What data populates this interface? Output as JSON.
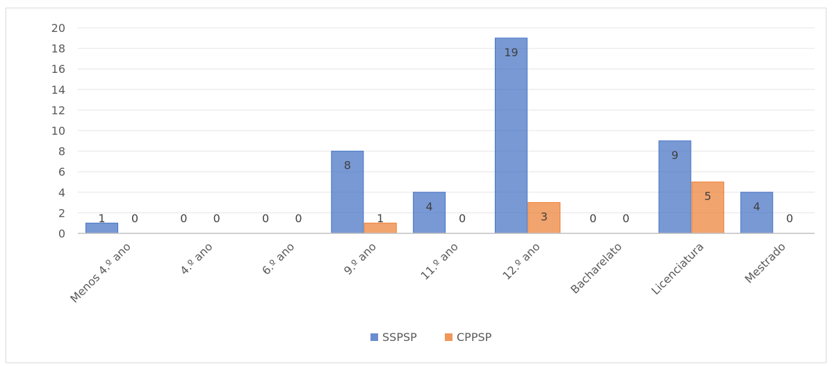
{
  "chart_data": {
    "type": "bar",
    "categories": [
      "Menos 4.º ano",
      "4.º ano",
      "6.º ano",
      "9.º ano",
      "11.º ano",
      "12.º ano",
      "Bacharelato",
      "Licenciatura",
      "Mestrado"
    ],
    "series": [
      {
        "name": "SSPSP",
        "values": [
          1,
          0,
          0,
          8,
          4,
          19,
          0,
          9,
          4
        ],
        "color": "#4472c4"
      },
      {
        "name": "CPPSP",
        "values": [
          0,
          0,
          0,
          1,
          0,
          3,
          0,
          5,
          0
        ],
        "color": "#ed7d31"
      }
    ],
    "ylim": [
      0,
      20
    ],
    "yticks": [
      0,
      2,
      4,
      6,
      8,
      10,
      12,
      14,
      16,
      18,
      20
    ],
    "grid": true,
    "data_labels": true,
    "legend_position": "bottom"
  }
}
